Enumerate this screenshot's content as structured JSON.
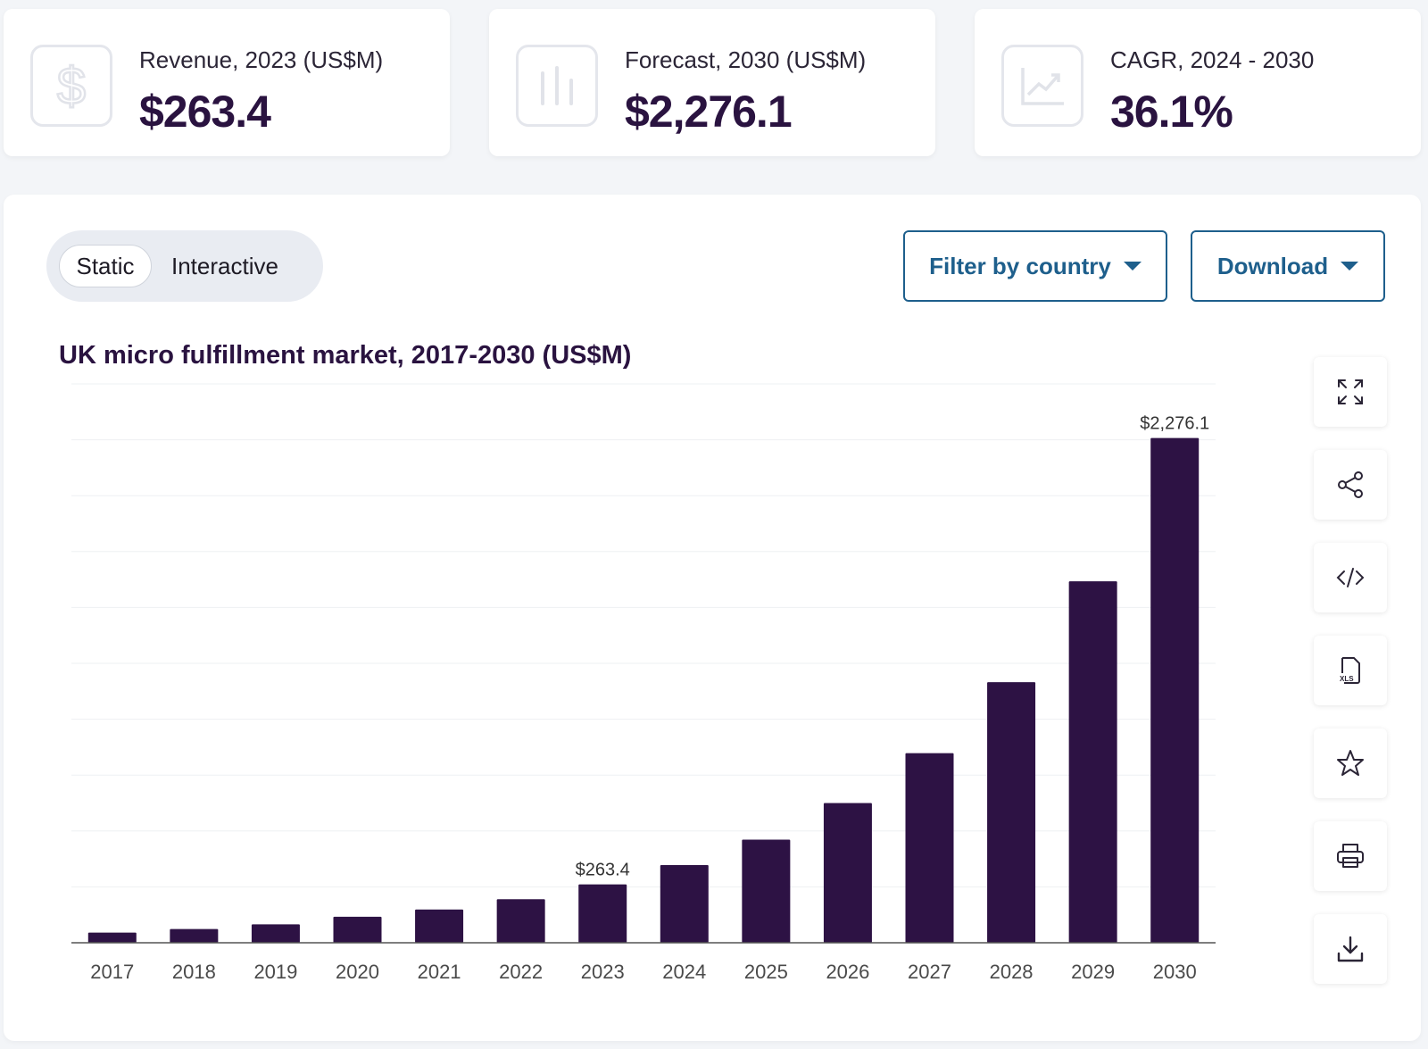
{
  "stats": [
    {
      "label": "Revenue, 2023 (US$M)",
      "value": "$263.4",
      "icon": "dollar-icon"
    },
    {
      "label": "Forecast, 2030 (US$M)",
      "value": "$2,276.1",
      "icon": "bar-chart-icon"
    },
    {
      "label": "CAGR, 2024 - 2030",
      "value": "36.1%",
      "icon": "trend-up-icon"
    }
  ],
  "toggle": {
    "static_label": "Static",
    "interactive_label": "Interactive",
    "selected": "Static"
  },
  "buttons": {
    "filter_label": "Filter by country",
    "download_label": "Download"
  },
  "side_tools": [
    "expand-icon",
    "share-icon",
    "embed-code-icon",
    "xls-file-icon",
    "star-icon",
    "print-icon",
    "download-icon"
  ],
  "colors": {
    "bar": "#2d1244",
    "accent": "#1e5f8c",
    "title": "#2a1340"
  },
  "chart_data": {
    "type": "bar",
    "title": "UK micro fulfillment market, 2017-2030 (US$M)",
    "categories": [
      "2017",
      "2018",
      "2019",
      "2020",
      "2021",
      "2022",
      "2023",
      "2024",
      "2025",
      "2026",
      "2027",
      "2028",
      "2029",
      "2030"
    ],
    "values": [
      46,
      62,
      83,
      117,
      150,
      196,
      263.4,
      350,
      465,
      630,
      855,
      1175,
      1630,
      2276.1
    ],
    "data_labels": {
      "2023": "$263.4",
      "2030": "$2,276.1"
    },
    "xlabel": "",
    "ylabel": "",
    "ylim": [
      0,
      2520
    ],
    "grid": true
  }
}
